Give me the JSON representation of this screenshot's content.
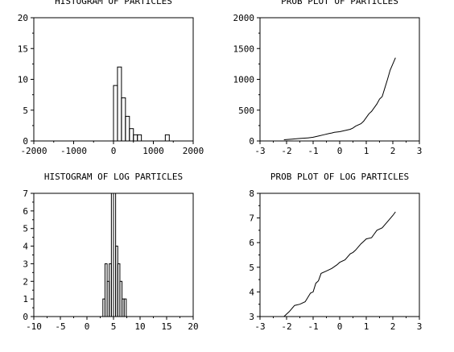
{
  "chart_data": [
    {
      "type": "bar",
      "title": "HISTOGRAM OF PARTICLES",
      "xlim": [
        -2000,
        2000
      ],
      "ylim": [
        0,
        20
      ],
      "xticks": [
        -2000,
        -1000,
        0,
        1000,
        2000
      ],
      "yticks": [
        0,
        5,
        10,
        15,
        20
      ],
      "xtick_labels": [
        "-2000",
        "-1000",
        "0",
        "1000",
        "2000"
      ],
      "ytick_labels": [
        "0",
        "5",
        "10",
        "15",
        "20"
      ],
      "bin_width": 100,
      "bins": [
        {
          "start": 0,
          "count": 9
        },
        {
          "start": 100,
          "count": 12
        },
        {
          "start": 200,
          "count": 7
        },
        {
          "start": 300,
          "count": 4
        },
        {
          "start": 400,
          "count": 2
        },
        {
          "start": 500,
          "count": 1
        },
        {
          "start": 600,
          "count": 1
        },
        {
          "start": 1300,
          "count": 1
        }
      ]
    },
    {
      "type": "line",
      "title": "PROB PLOT OF PARTICLES",
      "xlim": [
        -3,
        3
      ],
      "ylim": [
        0,
        2000
      ],
      "xticks": [
        -3,
        -2,
        -1,
        0,
        1,
        2,
        3
      ],
      "yticks": [
        0,
        500,
        1000,
        1500,
        2000
      ],
      "xtick_labels": [
        "-3",
        "-2",
        "-1",
        "0",
        "1",
        "2",
        "3"
      ],
      "ytick_labels": [
        "0",
        "500",
        "1000",
        "1500",
        "2000"
      ],
      "series": [
        {
          "x": [
            -2.1,
            -1.8,
            -1.5,
            -1.2,
            -1.0,
            -0.8,
            -0.6,
            -0.4,
            -0.3,
            -0.2,
            0.0,
            0.2,
            0.4,
            0.5,
            0.6,
            0.8,
            0.9,
            1.0,
            1.1,
            1.2,
            1.3,
            1.4,
            1.5,
            1.6,
            1.7,
            1.8,
            1.9,
            2.1
          ],
          "y": [
            20,
            30,
            40,
            50,
            60,
            80,
            100,
            120,
            130,
            140,
            150,
            170,
            190,
            210,
            240,
            280,
            320,
            380,
            440,
            480,
            540,
            600,
            680,
            720,
            860,
            1000,
            1150,
            1350
          ]
        }
      ]
    },
    {
      "type": "bar",
      "title": "HISTOGRAM OF LOG PARTICLES",
      "xlim": [
        -10,
        20
      ],
      "ylim": [
        0,
        7
      ],
      "xticks": [
        -10,
        -5,
        0,
        5,
        10,
        15,
        20
      ],
      "yticks": [
        0,
        1,
        2,
        3,
        4,
        5,
        6,
        7
      ],
      "xtick_labels": [
        "-10",
        "-5",
        "0",
        "5",
        "10",
        "15",
        "20"
      ],
      "ytick_labels": [
        "0",
        "1",
        "2",
        "3",
        "4",
        "5",
        "6",
        "7"
      ],
      "bin_width": 0.4,
      "bins": [
        {
          "start": 3.0,
          "count": 1
        },
        {
          "start": 3.4,
          "count": 3
        },
        {
          "start": 3.8,
          "count": 2
        },
        {
          "start": 4.2,
          "count": 3
        },
        {
          "start": 4.6,
          "count": 7
        },
        {
          "start": 5.0,
          "count": 7
        },
        {
          "start": 5.4,
          "count": 4
        },
        {
          "start": 5.8,
          "count": 3
        },
        {
          "start": 6.2,
          "count": 2
        },
        {
          "start": 6.6,
          "count": 1
        },
        {
          "start": 7.0,
          "count": 1
        }
      ]
    },
    {
      "type": "line",
      "title": "PROB PLOT OF LOG PARTICLES",
      "xlim": [
        -3,
        3
      ],
      "ylim": [
        3,
        8
      ],
      "xticks": [
        -3,
        -2,
        -1,
        0,
        1,
        2,
        3
      ],
      "yticks": [
        3,
        4,
        5,
        6,
        7,
        8
      ],
      "xtick_labels": [
        "-3",
        "-2",
        "-1",
        "0",
        "1",
        "2",
        "3"
      ],
      "ytick_labels": [
        "3",
        "4",
        "5",
        "6",
        "7",
        "8"
      ],
      "series": [
        {
          "x": [
            -2.1,
            -1.9,
            -1.7,
            -1.5,
            -1.3,
            -1.1,
            -1.0,
            -0.9,
            -0.8,
            -0.7,
            -0.5,
            -0.3,
            -0.1,
            0.0,
            0.2,
            0.4,
            0.5,
            0.6,
            0.8,
            0.9,
            1.0,
            1.2,
            1.3,
            1.4,
            1.6,
            1.8,
            2.0,
            2.1
          ],
          "y": [
            3.0,
            3.2,
            3.45,
            3.5,
            3.6,
            3.95,
            4.0,
            4.35,
            4.45,
            4.75,
            4.85,
            4.95,
            5.1,
            5.2,
            5.3,
            5.55,
            5.6,
            5.7,
            5.95,
            6.05,
            6.15,
            6.2,
            6.35,
            6.5,
            6.6,
            6.85,
            7.1,
            7.25
          ]
        }
      ]
    }
  ]
}
